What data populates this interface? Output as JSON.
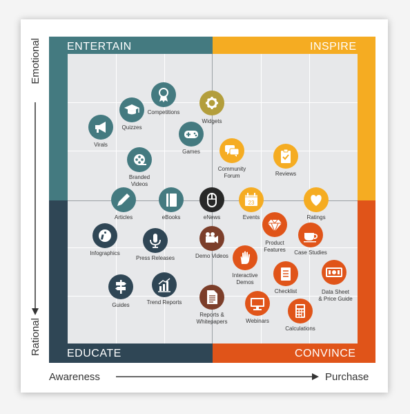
{
  "quadrants": {
    "entertain": "ENTERTAIN",
    "inspire": "INSPIRE",
    "educate": "EDUCATE",
    "convince": "CONVINCE"
  },
  "axes": {
    "emotional": "Emotional",
    "rational": "Rational",
    "awareness": "Awareness",
    "purchase": "Purchase"
  },
  "colors": {
    "entertain": "#447a80",
    "inspire": "#f5ac22",
    "educate": "#2f4655",
    "convince": "#e05419",
    "grey": "#8c8f91",
    "olive": "#b39e3c",
    "black": "#282828",
    "brown": "#7c3e2a"
  },
  "items": {
    "competitions": {
      "label": "Competitions",
      "icon": "ribbon-icon"
    },
    "quizzes": {
      "label": "Quizzes",
      "icon": "grad-cap-icon"
    },
    "widgets": {
      "label": "Widgets",
      "icon": "gear-icon"
    },
    "virals": {
      "label": "Virals",
      "icon": "megaphone-icon"
    },
    "games": {
      "label": "Games",
      "icon": "gamepad-icon"
    },
    "branded_videos": {
      "label": "Branded\nVideos",
      "icon": "film-reel-icon"
    },
    "community_forum": {
      "label": "Community\nForum",
      "icon": "chat-icon"
    },
    "reviews": {
      "label": "Reviews",
      "icon": "clipboard-icon"
    },
    "articles": {
      "label": "Articles",
      "icon": "pen-icon"
    },
    "ebooks": {
      "label": "eBooks",
      "icon": "book-icon"
    },
    "enews": {
      "label": "eNews",
      "icon": "mouse-icon"
    },
    "events": {
      "label": "Events",
      "icon": "calendar-icon",
      "number": "23"
    },
    "ratings": {
      "label": "Ratings",
      "icon": "heart-icon"
    },
    "infographics": {
      "label": "Infographics",
      "icon": "info-icon"
    },
    "press_releases": {
      "label": "Press Releases",
      "icon": "microphone-icon"
    },
    "demo_videos": {
      "label": "Demo Videos",
      "icon": "video-camera-icon"
    },
    "product_features": {
      "label": "Product\nFeatures",
      "icon": "diamond-icon"
    },
    "case_studies": {
      "label": "Case Studies",
      "icon": "coffee-cup-icon"
    },
    "interactive_demos": {
      "label": "Interactive\nDemos",
      "icon": "hand-icon"
    },
    "checklist": {
      "label": "Checklist",
      "icon": "checklist-icon"
    },
    "data_sheet": {
      "label": "Data Sheet\n& Price Guide",
      "icon": "money-icon"
    },
    "guides": {
      "label": "Guides",
      "icon": "signpost-icon"
    },
    "trend_reports": {
      "label": "Trend Reports",
      "icon": "bar-chart-icon"
    },
    "reports_whitepapers": {
      "label": "Reports &\nWhitepapers",
      "icon": "document-icon"
    },
    "webinars": {
      "label": "Webinars",
      "icon": "monitor-icon"
    },
    "calculations": {
      "label": "Calculations",
      "icon": "calculator-icon"
    }
  }
}
